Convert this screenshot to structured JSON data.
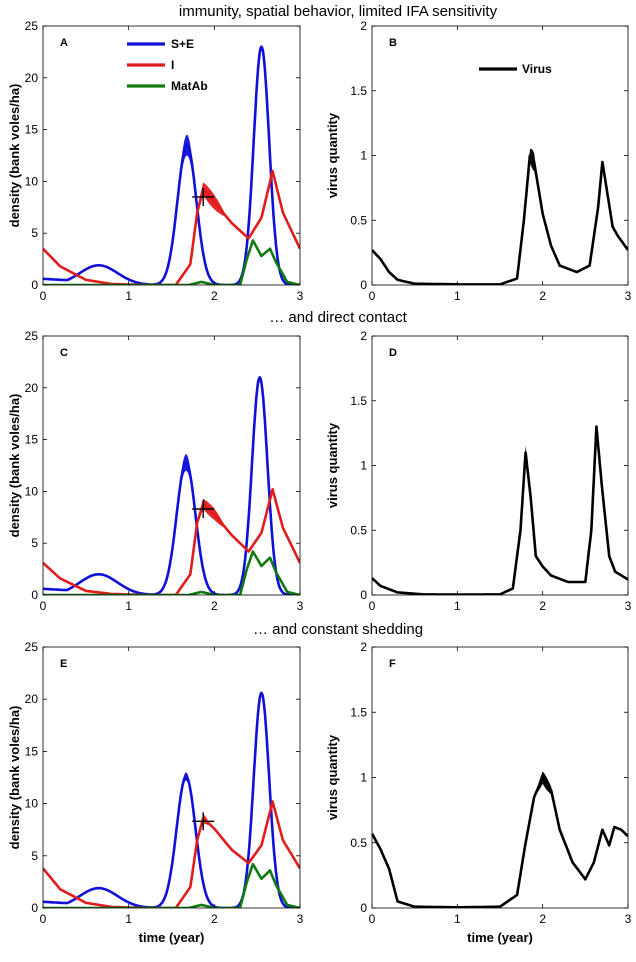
{
  "figure": {
    "row_titles": [
      "immunity, spatial behavior, limited IFA sensitivity",
      "… and direct contact",
      "… and constant shedding"
    ],
    "xlabel": "time (year)",
    "ylabel_density": "density (bank voles/ha)",
    "ylabel_virus": "virus quantity",
    "colors": {
      "se": "#1010d8",
      "i": "#e01c1c",
      "matab": "#107a10",
      "virus": "#000000"
    }
  },
  "chart_data": [
    {
      "type": "line",
      "panel": "A",
      "x_range": [
        0,
        3
      ],
      "ylim": [
        0,
        25
      ],
      "xticks": [
        "0",
        "1",
        "2",
        "3"
      ],
      "yticks": [
        "0",
        "5",
        "10",
        "15",
        "20",
        "25"
      ],
      "legend": [
        "S+E",
        "I",
        "MatAb"
      ],
      "series": [
        {
          "name": "S+E",
          "peaks": [
            [
              0.65,
              1.9,
              0.22
            ],
            [
              1.68,
              13.5,
              0.11
            ],
            [
              2.55,
              23.0,
              0.09
            ]
          ],
          "baseline": 0.3,
          "band_peak": 1,
          "band_width": 2.0
        },
        {
          "name": "I",
          "points": [
            [
              0,
              3.5
            ],
            [
              0.2,
              1.8
            ],
            [
              0.5,
              0.5
            ],
            [
              0.8,
              0.1
            ],
            [
              1.2,
              0
            ],
            [
              1.55,
              0
            ],
            [
              1.72,
              2
            ],
            [
              1.8,
              7
            ],
            [
              1.87,
              9.3
            ],
            [
              2.0,
              8.0
            ],
            [
              2.2,
              6.0
            ],
            [
              2.4,
              4.5
            ],
            [
              2.55,
              6.5
            ],
            [
              2.68,
              11.0
            ],
            [
              2.8,
              7.0
            ],
            [
              3.0,
              3.5
            ]
          ],
          "band": [
            1.75,
            2.15,
            1.5
          ]
        },
        {
          "name": "MatAb",
          "points": [
            [
              0,
              0
            ],
            [
              1.7,
              0
            ],
            [
              1.85,
              0.3
            ],
            [
              2.0,
              0
            ],
            [
              2.3,
              0
            ],
            [
              2.38,
              2.5
            ],
            [
              2.45,
              4.3
            ],
            [
              2.55,
              2.8
            ],
            [
              2.65,
              3.5
            ],
            [
              2.72,
              2.2
            ],
            [
              2.85,
              0.3
            ],
            [
              3.0,
              0
            ]
          ]
        }
      ],
      "marker": {
        "x": 1.87,
        "y": 8.5
      }
    },
    {
      "type": "line",
      "panel": "B",
      "x_range": [
        0,
        3
      ],
      "ylim": [
        0,
        2
      ],
      "xticks": [
        "0",
        "1",
        "2",
        "3"
      ],
      "yticks": [
        "0",
        "0.5",
        "1",
        "1.5",
        "2"
      ],
      "legend": [
        "Virus"
      ],
      "series": [
        {
          "name": "Virus",
          "points": [
            [
              0,
              0.27
            ],
            [
              0.1,
              0.2
            ],
            [
              0.2,
              0.1
            ],
            [
              0.3,
              0.04
            ],
            [
              0.5,
              0.01
            ],
            [
              1.0,
              0.005
            ],
            [
              1.5,
              0.005
            ],
            [
              1.7,
              0.05
            ],
            [
              1.78,
              0.5
            ],
            [
              1.85,
              1.0
            ],
            [
              1.9,
              0.95
            ],
            [
              2.0,
              0.55
            ],
            [
              2.1,
              0.3
            ],
            [
              2.2,
              0.15
            ],
            [
              2.4,
              0.1
            ],
            [
              2.55,
              0.15
            ],
            [
              2.65,
              0.6
            ],
            [
              2.7,
              0.95
            ],
            [
              2.76,
              0.7
            ],
            [
              2.82,
              0.45
            ],
            [
              2.88,
              0.38
            ],
            [
              3.0,
              0.27
            ]
          ],
          "band": [
            1.82,
            1.95,
            0.15
          ]
        }
      ]
    },
    {
      "type": "line",
      "panel": "C",
      "x_range": [
        0,
        3
      ],
      "ylim": [
        0,
        25
      ],
      "xticks": [
        "0",
        "1",
        "2",
        "3"
      ],
      "yticks": [
        "0",
        "5",
        "10",
        "15",
        "20",
        "25"
      ],
      "series": [
        {
          "name": "S+E",
          "peaks": [
            [
              0.65,
              2.0,
              0.22
            ],
            [
              1.67,
              12.8,
              0.11
            ],
            [
              2.53,
              21.0,
              0.09
            ]
          ],
          "baseline": 0.3,
          "band_peak": 1,
          "band_width": 1.6
        },
        {
          "name": "I",
          "points": [
            [
              0,
              3.1
            ],
            [
              0.2,
              1.6
            ],
            [
              0.5,
              0.4
            ],
            [
              0.8,
              0.1
            ],
            [
              1.2,
              0
            ],
            [
              1.55,
              0
            ],
            [
              1.72,
              2
            ],
            [
              1.8,
              7
            ],
            [
              1.87,
              8.8
            ],
            [
              2.0,
              7.8
            ],
            [
              2.2,
              5.8
            ],
            [
              2.4,
              4.2
            ],
            [
              2.55,
              6.0
            ],
            [
              2.68,
              10.2
            ],
            [
              2.8,
              6.5
            ],
            [
              3.0,
              3.1
            ]
          ],
          "band": [
            1.75,
            2.15,
            1.2
          ]
        },
        {
          "name": "MatAb",
          "points": [
            [
              0,
              0
            ],
            [
              1.7,
              0
            ],
            [
              1.85,
              0.3
            ],
            [
              2.0,
              0
            ],
            [
              2.3,
              0
            ],
            [
              2.38,
              2.5
            ],
            [
              2.45,
              4.2
            ],
            [
              2.55,
              2.8
            ],
            [
              2.65,
              3.6
            ],
            [
              2.72,
              2.2
            ],
            [
              2.85,
              0.3
            ],
            [
              3.0,
              0
            ]
          ]
        }
      ],
      "marker": {
        "x": 1.87,
        "y": 8.3
      }
    },
    {
      "type": "line",
      "panel": "D",
      "x_range": [
        0,
        3
      ],
      "ylim": [
        0,
        2
      ],
      "xticks": [
        "0",
        "1",
        "2",
        "3"
      ],
      "yticks": [
        "0",
        "0.5",
        "1",
        "1.5",
        "2"
      ],
      "series": [
        {
          "name": "Virus",
          "points": [
            [
              0,
              0.13
            ],
            [
              0.1,
              0.07
            ],
            [
              0.3,
              0.02
            ],
            [
              0.6,
              0.005
            ],
            [
              1.0,
              0.003
            ],
            [
              1.5,
              0.005
            ],
            [
              1.65,
              0.05
            ],
            [
              1.74,
              0.5
            ],
            [
              1.8,
              1.1
            ],
            [
              1.86,
              0.75
            ],
            [
              1.92,
              0.3
            ],
            [
              2.0,
              0.22
            ],
            [
              2.1,
              0.15
            ],
            [
              2.3,
              0.1
            ],
            [
              2.5,
              0.1
            ],
            [
              2.57,
              0.5
            ],
            [
              2.63,
              1.3
            ],
            [
              2.7,
              0.8
            ],
            [
              2.78,
              0.3
            ],
            [
              2.85,
              0.18
            ],
            [
              3.0,
              0.12
            ]
          ],
          "band": [
            1.77,
            1.86,
            0.12
          ]
        }
      ]
    },
    {
      "type": "line",
      "panel": "E",
      "x_range": [
        0,
        3
      ],
      "ylim": [
        0,
        25
      ],
      "xticks": [
        "0",
        "1",
        "2",
        "3"
      ],
      "yticks": [
        "0",
        "5",
        "10",
        "15",
        "20",
        "25"
      ],
      "series": [
        {
          "name": "S+E",
          "peaks": [
            [
              0.65,
              1.9,
              0.22
            ],
            [
              1.67,
              12.6,
              0.11
            ],
            [
              2.55,
              20.6,
              0.09
            ]
          ],
          "baseline": 0.3,
          "band_peak": 1,
          "band_width": 0.8
        },
        {
          "name": "I",
          "points": [
            [
              0,
              3.8
            ],
            [
              0.2,
              1.8
            ],
            [
              0.5,
              0.5
            ],
            [
              0.8,
              0.1
            ],
            [
              1.2,
              0
            ],
            [
              1.55,
              0
            ],
            [
              1.72,
              2
            ],
            [
              1.8,
              6.5
            ],
            [
              1.87,
              8.6
            ],
            [
              2.0,
              7.6
            ],
            [
              2.2,
              5.6
            ],
            [
              2.4,
              4.3
            ],
            [
              2.55,
              6.0
            ],
            [
              2.68,
              10.2
            ],
            [
              2.8,
              6.5
            ],
            [
              3.0,
              3.8
            ]
          ],
          "band": [
            1.8,
            1.95,
            0.8
          ]
        },
        {
          "name": "MatAb",
          "points": [
            [
              0,
              0
            ],
            [
              1.7,
              0
            ],
            [
              1.85,
              0.3
            ],
            [
              2.0,
              0
            ],
            [
              2.3,
              0
            ],
            [
              2.38,
              2.5
            ],
            [
              2.45,
              4.2
            ],
            [
              2.55,
              2.8
            ],
            [
              2.65,
              3.6
            ],
            [
              2.72,
              2.2
            ],
            [
              2.85,
              0.3
            ],
            [
              3.0,
              0
            ]
          ]
        }
      ],
      "marker": {
        "x": 1.87,
        "y": 8.3
      }
    },
    {
      "type": "line",
      "panel": "F",
      "x_range": [
        0,
        3
      ],
      "ylim": [
        0,
        2
      ],
      "xticks": [
        "0",
        "1",
        "2",
        "3"
      ],
      "yticks": [
        "0",
        "0.5",
        "1",
        "1.5",
        "2"
      ],
      "xlabel_shown": true,
      "series": [
        {
          "name": "Virus",
          "points": [
            [
              0,
              0.57
            ],
            [
              0.1,
              0.45
            ],
            [
              0.2,
              0.3
            ],
            [
              0.3,
              0.05
            ],
            [
              0.5,
              0.01
            ],
            [
              1.0,
              0.005
            ],
            [
              1.5,
              0.01
            ],
            [
              1.7,
              0.1
            ],
            [
              1.8,
              0.5
            ],
            [
              1.9,
              0.85
            ],
            [
              2.0,
              1.0
            ],
            [
              2.1,
              0.9
            ],
            [
              2.2,
              0.6
            ],
            [
              2.35,
              0.35
            ],
            [
              2.5,
              0.22
            ],
            [
              2.6,
              0.35
            ],
            [
              2.7,
              0.6
            ],
            [
              2.78,
              0.48
            ],
            [
              2.84,
              0.62
            ],
            [
              2.92,
              0.6
            ],
            [
              3.0,
              0.55
            ]
          ],
          "band": [
            1.9,
            2.15,
            0.1
          ]
        }
      ]
    }
  ]
}
